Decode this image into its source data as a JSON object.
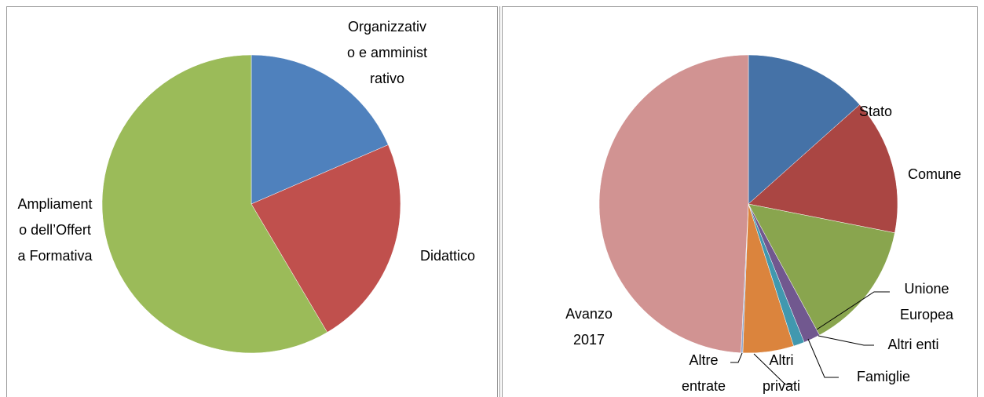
{
  "chart_data": [
    {
      "type": "pie",
      "categories": [
        "Organizzativo e amministrativo",
        "Didattico",
        "Ampliamento dell’Offerta Formativa"
      ],
      "values": [
        18.5,
        23,
        58.5
      ],
      "colors": [
        "#4f81bd",
        "#c0504d",
        "#9bbb59"
      ]
    },
    {
      "type": "pie",
      "categories": [
        "Stato",
        "Comune",
        "Unione Europea",
        "Altri enti",
        "Famiglie",
        "Altri privati",
        "Altre entrate",
        "Avanzo 2017"
      ],
      "values": [
        13.4,
        14.7,
        14,
        1.8,
        1.2,
        5.5,
        0.2,
        49.2
      ],
      "colors": [
        "#4572a7",
        "#aa4643",
        "#89a54e",
        "#71588f",
        "#4198af",
        "#db843d",
        "#93a9cf",
        "#d19392"
      ]
    }
  ]
}
